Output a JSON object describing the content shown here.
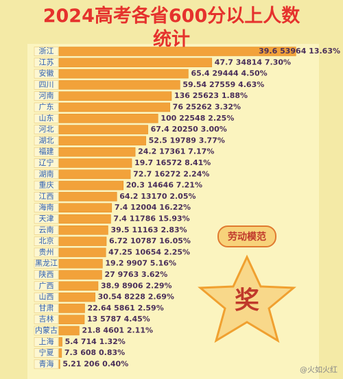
{
  "chart_data": {
    "type": "hbar",
    "title": "2024高考各省600分以上人数统计",
    "categories": [
      "浙江",
      "江苏",
      "安徽",
      "四川",
      "河南",
      "广东",
      "山东",
      "河北",
      "湖北",
      "福建",
      "辽宁",
      "湖南",
      "重庆",
      "江西",
      "海南",
      "天津",
      "云南",
      "北京",
      "贵州",
      "黑龙江",
      "陕西",
      "广西",
      "山西",
      "甘肃",
      "吉林",
      "内蒙古",
      "上海",
      "宁夏",
      "青海"
    ],
    "values": [
      53964,
      34814,
      29444,
      27559,
      25623,
      25262,
      22548,
      20250,
      19789,
      17361,
      16572,
      16272,
      14646,
      13170,
      12004,
      11786,
      11163,
      10787,
      10654,
      9907,
      9763,
      8906,
      8228,
      5861,
      5787,
      4601,
      714,
      608,
      206
    ],
    "value_labels": [
      "39.6 53964 13.63%",
      "47.7 34814 7.30%",
      "65.4 29444 4.50%",
      "59.54 27559 4.63%",
      "136 25623 1.88%",
      "76 25262 3.32%",
      "100 22548 2.25%",
      "67.4 20250 3.00%",
      "52.5 19789 3.77%",
      "24.2 17361 7.17%",
      "19.7 16572 8.41%",
      "72.7 16272 2.24%",
      "20.3 14646 7.21%",
      "64.2 13170 2.05%",
      "7.4 12004 16.22%",
      "7.4 11786 15.93%",
      "39.5 11163 2.83%",
      "6.72 10787 16.05%",
      "47.25 10654 2.25%",
      "19.2 9907 5.16%",
      "27 9763 3.62%",
      "38.9 8906 2.29%",
      "30.54 8228 2.69%",
      "22.64 5861 2.59%",
      "13 5787 4.45%",
      "21.8 4601 2.11%",
      "5.4 714 1.32%",
      "7.3 608 0.83%",
      "5.21 206 0.40%"
    ],
    "color": "#f2a23a",
    "badge": "劳动模范",
    "award": "奖",
    "watermark": "@火如火红"
  }
}
